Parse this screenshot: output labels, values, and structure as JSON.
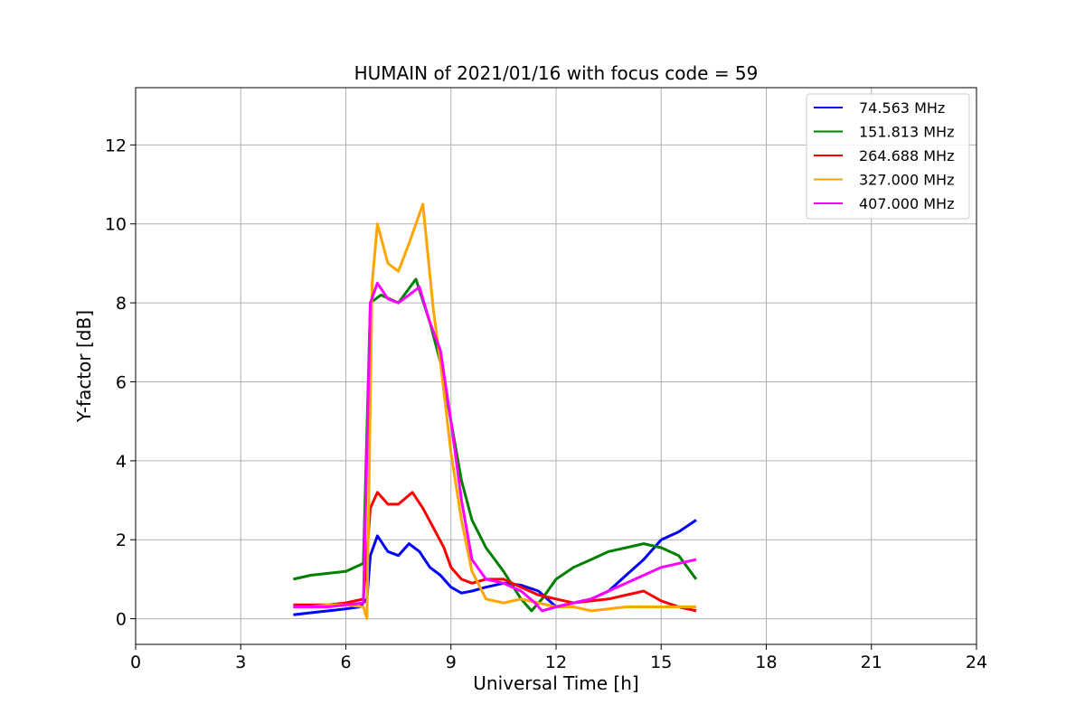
{
  "chart_data": {
    "type": "line",
    "title": "HUMAIN of 2021/01/16 with focus code = 59",
    "xlabel": "Universal Time [h]",
    "ylabel": "Y-factor [dB]",
    "xlim": [
      0,
      24
    ],
    "ylim": [
      -0.65,
      13.45
    ],
    "xticks": [
      0,
      3,
      6,
      9,
      12,
      15,
      18,
      21,
      24
    ],
    "yticks": [
      0,
      2,
      4,
      6,
      8,
      10,
      12
    ],
    "grid": true,
    "legend_position": "top-right",
    "series": [
      {
        "name": " 74.563 MHz",
        "color": "#0000ff",
        "x": [
          4.5,
          5.0,
          5.5,
          6.0,
          6.4,
          6.6,
          6.7,
          6.9,
          7.2,
          7.5,
          7.8,
          8.1,
          8.4,
          8.7,
          9.0,
          9.3,
          9.6,
          10.0,
          10.5,
          11.0,
          11.5,
          12.0,
          12.5,
          13.0,
          13.5,
          14.0,
          14.5,
          15.0,
          15.5,
          16.0
        ],
        "y": [
          0.1,
          0.15,
          0.2,
          0.25,
          0.3,
          0.5,
          1.6,
          2.1,
          1.7,
          1.6,
          1.9,
          1.7,
          1.3,
          1.1,
          0.8,
          0.65,
          0.7,
          0.8,
          0.9,
          0.85,
          0.7,
          0.3,
          0.4,
          0.5,
          0.7,
          1.1,
          1.5,
          2.0,
          2.2,
          2.5
        ]
      },
      {
        "name": "151.813 MHz",
        "color": "#008000",
        "x": [
          4.5,
          5.0,
          5.5,
          6.0,
          6.5,
          6.7,
          7.0,
          7.5,
          8.0,
          8.4,
          8.7,
          9.0,
          9.3,
          9.6,
          10.0,
          10.5,
          11.0,
          11.3,
          11.6,
          12.0,
          12.5,
          13.0,
          13.5,
          14.0,
          14.5,
          15.0,
          15.5,
          16.0
        ],
        "y": [
          1.0,
          1.1,
          1.15,
          1.2,
          1.4,
          8.0,
          8.2,
          8.0,
          8.6,
          7.5,
          6.5,
          5.0,
          3.5,
          2.5,
          1.8,
          1.2,
          0.5,
          0.2,
          0.5,
          1.0,
          1.3,
          1.5,
          1.7,
          1.8,
          1.9,
          1.8,
          1.6,
          1.0
        ]
      },
      {
        "name": "264.688 MHz",
        "color": "#ff0000",
        "x": [
          4.5,
          5.0,
          5.5,
          6.0,
          6.5,
          6.7,
          6.9,
          7.2,
          7.5,
          7.9,
          8.2,
          8.5,
          8.8,
          9.0,
          9.3,
          9.6,
          10.0,
          10.5,
          11.0,
          11.5,
          12.0,
          12.5,
          13.0,
          13.5,
          14.0,
          14.5,
          15.0,
          15.5,
          16.0
        ],
        "y": [
          0.35,
          0.35,
          0.35,
          0.4,
          0.5,
          2.8,
          3.2,
          2.9,
          2.9,
          3.2,
          2.8,
          2.3,
          1.8,
          1.3,
          1.0,
          0.9,
          1.0,
          1.0,
          0.8,
          0.6,
          0.5,
          0.4,
          0.45,
          0.5,
          0.6,
          0.7,
          0.45,
          0.3,
          0.2
        ]
      },
      {
        "name": "327.000 MHz",
        "color": "#ffa500",
        "x": [
          4.5,
          5.0,
          5.5,
          6.0,
          6.5,
          6.6,
          6.75,
          6.9,
          7.2,
          7.5,
          7.8,
          8.0,
          8.2,
          8.5,
          8.7,
          9.0,
          9.3,
          9.6,
          10.0,
          10.5,
          11.0,
          11.5,
          12.0,
          12.5,
          13.0,
          13.5,
          14.0,
          14.5,
          15.0,
          15.5,
          16.0
        ],
        "y": [
          0.3,
          0.3,
          0.35,
          0.35,
          0.3,
          0.0,
          8.5,
          10.0,
          9.0,
          8.8,
          9.5,
          10.0,
          10.5,
          7.8,
          6.5,
          4.2,
          2.5,
          1.2,
          0.5,
          0.4,
          0.5,
          0.4,
          0.3,
          0.3,
          0.2,
          0.25,
          0.3,
          0.3,
          0.3,
          0.3,
          0.3
        ]
      },
      {
        "name": "407.000 MHz",
        "color": "#ff00ff",
        "x": [
          4.5,
          5.0,
          5.5,
          6.0,
          6.5,
          6.7,
          6.9,
          7.2,
          7.5,
          7.8,
          8.1,
          8.4,
          8.7,
          9.0,
          9.3,
          9.6,
          10.0,
          10.5,
          11.0,
          11.4,
          11.6,
          12.0,
          12.5,
          13.0,
          13.5,
          14.0,
          14.5,
          15.0,
          15.5,
          16.0
        ],
        "y": [
          0.3,
          0.3,
          0.3,
          0.35,
          0.4,
          8.0,
          8.5,
          8.1,
          8.0,
          8.2,
          8.4,
          7.5,
          6.8,
          5.0,
          3.0,
          1.5,
          1.0,
          0.9,
          0.7,
          0.4,
          0.2,
          0.3,
          0.4,
          0.5,
          0.7,
          0.9,
          1.1,
          1.3,
          1.4,
          1.5
        ]
      }
    ]
  }
}
